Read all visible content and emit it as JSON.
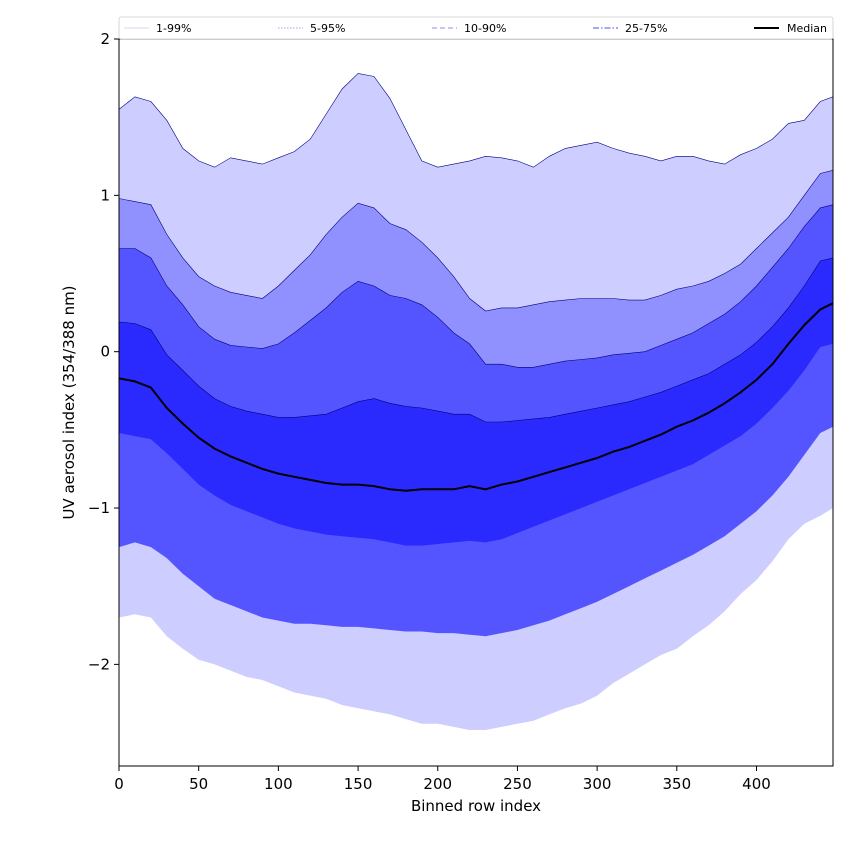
{
  "chart_data": {
    "type": "area",
    "xlabel": "Binned row index",
    "ylabel": "UV aerosol index (354/388 nm)",
    "xlim": [
      0,
      448
    ],
    "ylim": [
      -2.65,
      2.0
    ],
    "x_ticks": [
      0,
      50,
      100,
      150,
      200,
      250,
      300,
      350,
      400
    ],
    "y_ticks": [
      -2,
      -1,
      0,
      1,
      2
    ],
    "y_tick_labels": [
      "−2",
      "−1",
      "0",
      "1",
      "2"
    ],
    "legend": {
      "placement": "top",
      "entries": [
        {
          "label": "1-99%",
          "color": "#d8d8f0",
          "style": "solid"
        },
        {
          "label": "5-95%",
          "color": "#a0a0e0",
          "style": "dotted"
        },
        {
          "label": "10-90%",
          "color": "#8c8cff",
          "style": "dashed"
        },
        {
          "label": "25-75%",
          "color": "#5050e8",
          "style": "dashdot"
        },
        {
          "label": "Median",
          "color": "#000000",
          "style": "solid"
        }
      ]
    },
    "x": [
      0,
      10,
      20,
      30,
      40,
      50,
      60,
      70,
      80,
      90,
      100,
      110,
      120,
      130,
      140,
      150,
      160,
      170,
      180,
      190,
      200,
      210,
      220,
      230,
      240,
      250,
      260,
      270,
      280,
      290,
      300,
      310,
      320,
      330,
      340,
      350,
      360,
      370,
      380,
      390,
      400,
      410,
      420,
      430,
      440,
      448
    ],
    "bands": [
      {
        "name": "1-99%",
        "color": "#cdcdff",
        "upper": [
          1.55,
          1.63,
          1.6,
          1.48,
          1.3,
          1.22,
          1.18,
          1.24,
          1.22,
          1.2,
          1.24,
          1.28,
          1.36,
          1.52,
          1.68,
          1.78,
          1.76,
          1.62,
          1.42,
          1.22,
          1.18,
          1.2,
          1.22,
          1.25,
          1.24,
          1.22,
          1.18,
          1.25,
          1.3,
          1.32,
          1.34,
          1.3,
          1.27,
          1.25,
          1.22,
          1.25,
          1.25,
          1.22,
          1.2,
          1.26,
          1.3,
          1.36,
          1.46,
          1.48,
          1.6,
          1.63
        ],
        "lower": [
          -1.7,
          -1.68,
          -1.7,
          -1.82,
          -1.9,
          -1.97,
          -2.0,
          -2.04,
          -2.08,
          -2.1,
          -2.14,
          -2.18,
          -2.2,
          -2.22,
          -2.26,
          -2.28,
          -2.3,
          -2.32,
          -2.35,
          -2.38,
          -2.38,
          -2.4,
          -2.42,
          -2.42,
          -2.4,
          -2.38,
          -2.36,
          -2.32,
          -2.28,
          -2.25,
          -2.2,
          -2.12,
          -2.06,
          -2.0,
          -1.94,
          -1.9,
          -1.82,
          -1.75,
          -1.66,
          -1.55,
          -1.46,
          -1.34,
          -1.2,
          -1.1,
          -1.05,
          -1.0
        ]
      },
      {
        "name": "5-95%",
        "color": "#9090ff",
        "upper": [
          0.98,
          0.96,
          0.94,
          0.75,
          0.6,
          0.48,
          0.42,
          0.38,
          0.36,
          0.34,
          0.42,
          0.52,
          0.62,
          0.75,
          0.86,
          0.95,
          0.92,
          0.82,
          0.78,
          0.7,
          0.6,
          0.48,
          0.34,
          0.26,
          0.28,
          0.28,
          0.3,
          0.32,
          0.33,
          0.34,
          0.34,
          0.34,
          0.33,
          0.33,
          0.36,
          0.4,
          0.42,
          0.45,
          0.5,
          0.56,
          0.66,
          0.76,
          0.86,
          1.0,
          1.14,
          1.16
        ],
        "lower": [
          -0.95,
          -0.92,
          -0.95,
          -1.05,
          -1.15,
          -1.22,
          -1.3,
          -1.35,
          -1.4,
          -1.44,
          -1.48,
          -1.5,
          -1.52,
          -1.53,
          -1.55,
          -1.56,
          -1.58,
          -1.6,
          -1.62,
          -1.62,
          -1.6,
          -1.6,
          -1.62,
          -1.62,
          -1.6,
          -1.58,
          -1.55,
          -1.52,
          -1.48,
          -1.45,
          -1.4,
          -1.36,
          -1.3,
          -1.25,
          -1.2,
          -1.15,
          -1.1,
          -1.05,
          -0.98,
          -0.9,
          -0.82,
          -0.72,
          -0.6,
          -0.48,
          -0.32,
          -0.25
        ]
      },
      {
        "name": "10-90%",
        "color": "#5555ff",
        "upper": [
          0.66,
          0.66,
          0.6,
          0.42,
          0.3,
          0.16,
          0.08,
          0.04,
          0.03,
          0.02,
          0.05,
          0.12,
          0.2,
          0.28,
          0.38,
          0.45,
          0.42,
          0.36,
          0.34,
          0.3,
          0.22,
          0.12,
          0.05,
          -0.08,
          -0.08,
          -0.1,
          -0.1,
          -0.08,
          -0.06,
          -0.05,
          -0.04,
          -0.02,
          -0.01,
          0.0,
          0.04,
          0.08,
          0.12,
          0.18,
          0.24,
          0.32,
          0.42,
          0.54,
          0.66,
          0.8,
          0.92,
          0.94
        ],
        "lower": [
          -1.25,
          -1.22,
          -1.25,
          -1.32,
          -1.42,
          -1.5,
          -1.58,
          -1.62,
          -1.66,
          -1.7,
          -1.72,
          -1.74,
          -1.74,
          -1.75,
          -1.76,
          -1.76,
          -1.77,
          -1.78,
          -1.79,
          -1.79,
          -1.8,
          -1.8,
          -1.81,
          -1.82,
          -1.8,
          -1.78,
          -1.75,
          -1.72,
          -1.68,
          -1.64,
          -1.6,
          -1.55,
          -1.5,
          -1.45,
          -1.4,
          -1.35,
          -1.3,
          -1.24,
          -1.18,
          -1.1,
          -1.02,
          -0.92,
          -0.8,
          -0.66,
          -0.52,
          -0.48
        ]
      },
      {
        "name": "25-75%",
        "color": "#2a2aff",
        "upper": [
          0.19,
          0.18,
          0.14,
          -0.02,
          -0.12,
          -0.22,
          -0.3,
          -0.35,
          -0.38,
          -0.4,
          -0.42,
          -0.42,
          -0.41,
          -0.4,
          -0.36,
          -0.32,
          -0.3,
          -0.33,
          -0.35,
          -0.36,
          -0.38,
          -0.4,
          -0.4,
          -0.45,
          -0.45,
          -0.44,
          -0.43,
          -0.42,
          -0.4,
          -0.38,
          -0.36,
          -0.34,
          -0.32,
          -0.29,
          -0.26,
          -0.22,
          -0.18,
          -0.14,
          -0.08,
          -0.02,
          0.06,
          0.16,
          0.28,
          0.42,
          0.58,
          0.6
        ],
        "lower": [
          -0.52,
          -0.54,
          -0.56,
          -0.65,
          -0.75,
          -0.85,
          -0.92,
          -0.98,
          -1.02,
          -1.06,
          -1.1,
          -1.13,
          -1.15,
          -1.17,
          -1.18,
          -1.19,
          -1.2,
          -1.22,
          -1.24,
          -1.24,
          -1.23,
          -1.22,
          -1.21,
          -1.22,
          -1.2,
          -1.16,
          -1.12,
          -1.08,
          -1.04,
          -1.0,
          -0.96,
          -0.92,
          -0.88,
          -0.84,
          -0.8,
          -0.76,
          -0.72,
          -0.66,
          -0.6,
          -0.54,
          -0.46,
          -0.36,
          -0.25,
          -0.12,
          0.03,
          0.05
        ]
      }
    ],
    "series": [
      {
        "name": "Median",
        "color": "#000000",
        "values": [
          -0.17,
          -0.19,
          -0.23,
          -0.36,
          -0.46,
          -0.55,
          -0.62,
          -0.67,
          -0.71,
          -0.75,
          -0.78,
          -0.8,
          -0.82,
          -0.84,
          -0.85,
          -0.85,
          -0.86,
          -0.88,
          -0.89,
          -0.88,
          -0.88,
          -0.88,
          -0.86,
          -0.88,
          -0.85,
          -0.83,
          -0.8,
          -0.77,
          -0.74,
          -0.71,
          -0.68,
          -0.64,
          -0.61,
          -0.57,
          -0.53,
          -0.48,
          -0.44,
          -0.39,
          -0.33,
          -0.26,
          -0.18,
          -0.08,
          0.05,
          0.17,
          0.27,
          0.31
        ]
      }
    ]
  }
}
